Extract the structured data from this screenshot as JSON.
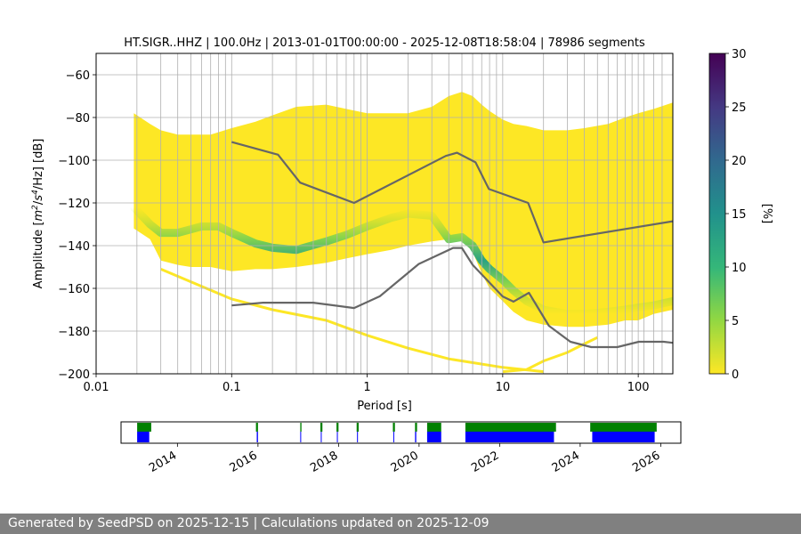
{
  "footer": "Generated by SeedPSD on 2025-12-15 | Calculations updated on 2025-12-09",
  "chart_data": [
    {
      "type": "heatmap",
      "title": "HT.SIGR..HHZ | 100.0Hz | 2013-01-01T00:00:00 - 2025-12-08T18:58:04 | 78986 segments",
      "xlabel": "Period [s]",
      "ylabel_parts": {
        "prefix": "Amplitude [",
        "m": "m",
        "m_exp": "2",
        "slash1": "/",
        "s": "s",
        "s_exp": "4",
        "suffix": "/Hz] [dB]"
      },
      "xscale": "log",
      "xlim": [
        0.01,
        180
      ],
      "ylim": [
        -200,
        -50
      ],
      "x_ticks": [
        {
          "value": 0.01,
          "label": "0.01"
        },
        {
          "value": 0.1,
          "label": "0.1"
        },
        {
          "value": 1,
          "label": "1"
        },
        {
          "value": 10,
          "label": "10"
        },
        {
          "value": 100,
          "label": "100"
        }
      ],
      "y_ticks": [
        -60,
        -80,
        -100,
        -120,
        -140,
        -160,
        -180,
        -200
      ],
      "y_tick_labels": [
        "−60",
        "−80",
        "−100",
        "−120",
        "−140",
        "−160",
        "−180",
        "−200"
      ],
      "grid": true,
      "colorbar": {
        "label": "[%]",
        "min": 0,
        "max": 30,
        "ticks": [
          0,
          5,
          10,
          15,
          20,
          25,
          30
        ],
        "colormap": "viridis"
      },
      "grid_periods": [
        0.02,
        0.03,
        0.04,
        0.05,
        0.06,
        0.07,
        0.08,
        0.09,
        0.1,
        0.2,
        0.3,
        0.4,
        0.5,
        0.6,
        0.7,
        0.8,
        0.9,
        1,
        2,
        3,
        4,
        5,
        6,
        7,
        8,
        9,
        10,
        20,
        30,
        40,
        50,
        60,
        70,
        80,
        90,
        100,
        110,
        130,
        150
      ],
      "psd_envelope": {
        "periods": [
          0.019,
          0.025,
          0.03,
          0.04,
          0.05,
          0.07,
          0.1,
          0.15,
          0.2,
          0.3,
          0.5,
          0.7,
          1,
          1.5,
          2,
          3,
          4,
          5,
          6,
          7,
          8,
          10,
          12,
          15,
          20,
          30,
          40,
          60,
          80,
          100,
          130,
          180
        ],
        "upper": [
          -78,
          -83,
          -86,
          -88,
          -88,
          -88,
          -85,
          -82,
          -79,
          -75,
          -74,
          -76,
          -78,
          -78,
          -78,
          -75,
          -70,
          -68,
          -70,
          -74,
          -77,
          -81,
          -83,
          -84,
          -86,
          -86,
          -85,
          -83,
          -80,
          -78,
          -76,
          -73
        ],
        "lower": [
          -132,
          -137,
          -147,
          -149,
          -150,
          -150,
          -152,
          -151,
          -151,
          -150,
          -148,
          -146,
          -144,
          -142,
          -140,
          -138,
          -137,
          -137,
          -143,
          -153,
          -160,
          -166,
          -171,
          -175,
          -177,
          -178,
          -178,
          -177,
          -175,
          -175,
          -172,
          -170
        ]
      },
      "psd_mode": {
        "periods": [
          0.019,
          0.025,
          0.03,
          0.04,
          0.06,
          0.08,
          0.1,
          0.15,
          0.2,
          0.3,
          0.5,
          0.7,
          1,
          1.5,
          2,
          3,
          4,
          5,
          6,
          7,
          8,
          10,
          12,
          15,
          20,
          30,
          40,
          60,
          80,
          100,
          130,
          180
        ],
        "db": [
          -122,
          -130,
          -134,
          -134,
          -131,
          -131,
          -134,
          -139,
          -141,
          -142,
          -138,
          -135,
          -131,
          -127,
          -125,
          -126,
          -137,
          -136,
          -140,
          -147,
          -151,
          -156,
          -161,
          -166,
          -170,
          -172,
          -172,
          -171,
          -170,
          -169,
          -168,
          -166
        ]
      },
      "psd_spurs": [
        {
          "periods": [
            0.03,
            0.1,
            0.2,
            0.5,
            1,
            2,
            4,
            10,
            20
          ],
          "db": [
            -151,
            -165,
            -170,
            -175,
            -182,
            -188,
            -193,
            -197,
            -199
          ]
        },
        {
          "periods": [
            10,
            15,
            20,
            30,
            40,
            50
          ],
          "db": [
            -199,
            -198,
            -194,
            -190,
            -186,
            -183
          ]
        }
      ],
      "noise_models": [
        {
          "name": "NHNM",
          "periods": [
            0.1,
            0.22,
            0.32,
            0.8,
            3.8,
            4.6,
            6.3,
            7.9,
            15.4,
            20,
            180
          ],
          "db": [
            -91.5,
            -97.4,
            -110.5,
            -120,
            -98,
            -96.5,
            -101,
            -113.5,
            -120,
            -138.5,
            -128.6
          ]
        },
        {
          "name": "NLNM",
          "periods": [
            0.1,
            0.17,
            0.4,
            0.8,
            1.24,
            2.4,
            4.3,
            5,
            6,
            10,
            12,
            15.6,
            21.9,
            31.6,
            45,
            70,
            101,
            154,
            180
          ],
          "db": [
            -168,
            -166.7,
            -166.7,
            -169.2,
            -163.7,
            -148.6,
            -141.1,
            -141.1,
            -149,
            -163.8,
            -166.2,
            -162.1,
            -177.5,
            -185,
            -187.5,
            -187.5,
            -185,
            -185,
            -185.5
          ]
        }
      ]
    },
    {
      "type": "timeline",
      "x_range_years": [
        2012.6,
        2026.5
      ],
      "tick_labels": [
        {
          "year": 2014,
          "label": "2014"
        },
        {
          "year": 2016,
          "label": "2016"
        },
        {
          "year": 2018,
          "label": "2018"
        },
        {
          "year": 2020,
          "label": "2020"
        },
        {
          "year": 2022,
          "label": "2022"
        },
        {
          "year": 2024,
          "label": "2024"
        },
        {
          "year": 2026,
          "label": "2026"
        }
      ],
      "colors": {
        "availability": "#008000",
        "processed": "#0000ff"
      },
      "availability_segments": [
        [
          2013.0,
          2013.35
        ],
        [
          2015.95,
          2016.0
        ],
        [
          2017.05,
          2017.08
        ],
        [
          2017.55,
          2017.6
        ],
        [
          2017.95,
          2018.0
        ],
        [
          2018.45,
          2018.5
        ],
        [
          2019.35,
          2019.4
        ],
        [
          2019.9,
          2019.95
        ],
        [
          2020.2,
          2020.55
        ],
        [
          2021.15,
          2023.4
        ],
        [
          2024.25,
          2025.9
        ]
      ],
      "processed_segments": [
        [
          2013.0,
          2013.3
        ],
        [
          2015.97,
          2016.0
        ],
        [
          2017.05,
          2017.07
        ],
        [
          2017.56,
          2017.58
        ],
        [
          2017.96,
          2017.98
        ],
        [
          2018.46,
          2018.48
        ],
        [
          2019.36,
          2019.38
        ],
        [
          2019.9,
          2019.93
        ],
        [
          2020.2,
          2020.55
        ],
        [
          2021.15,
          2023.35
        ],
        [
          2024.3,
          2025.85
        ]
      ]
    }
  ]
}
